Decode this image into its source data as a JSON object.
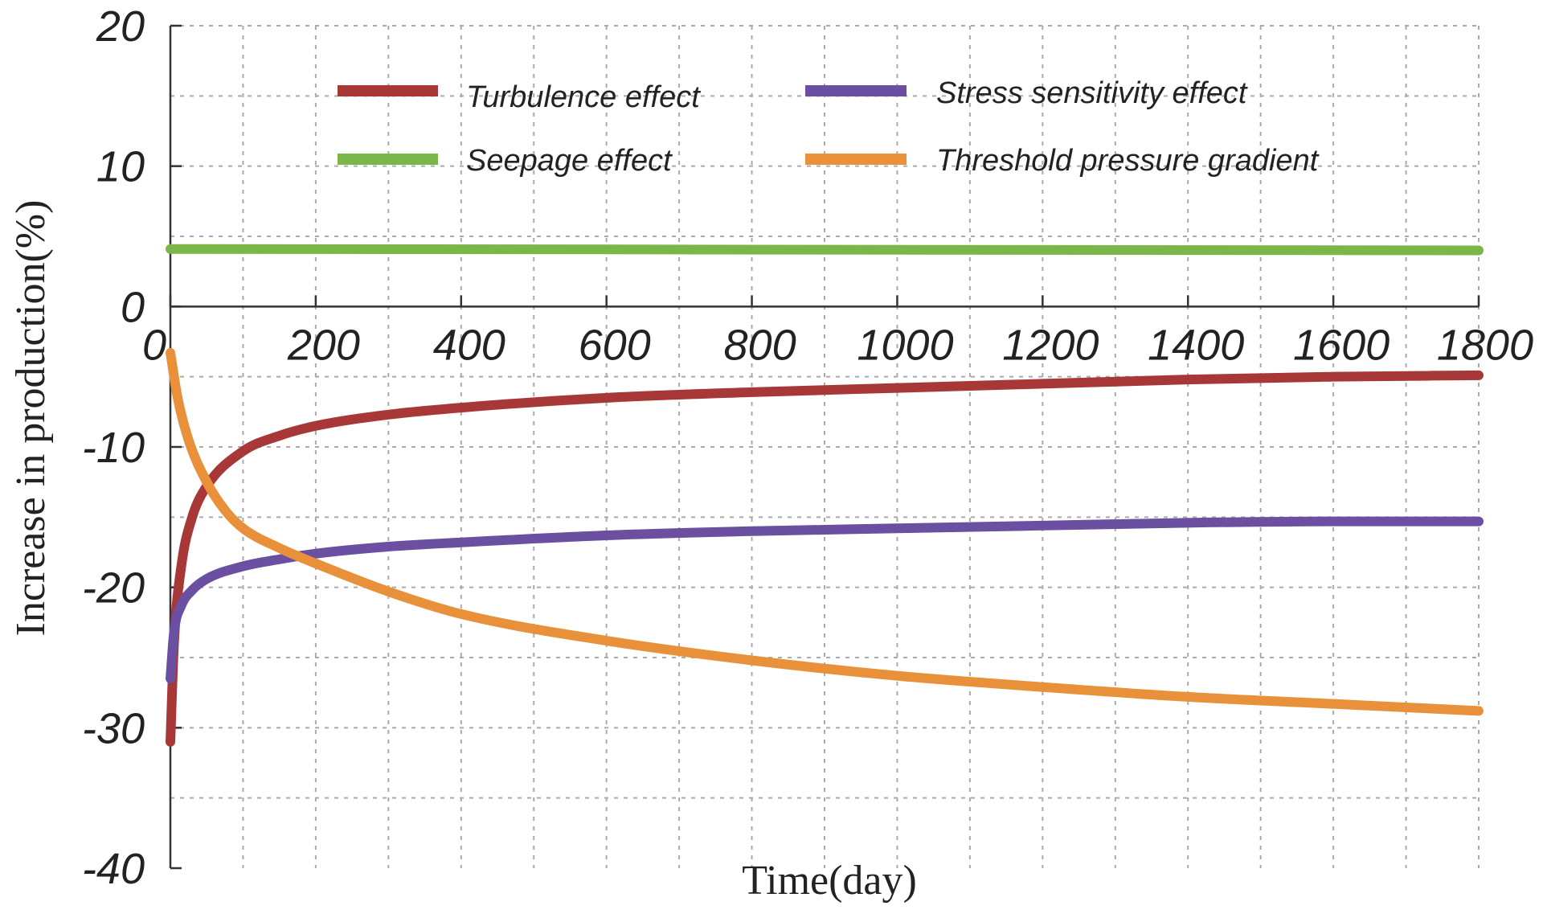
{
  "chart_data": {
    "type": "line",
    "title": "",
    "xlabel": "Time(day)",
    "ylabel": "Increase in production(%)",
    "xlim": [
      0,
      1800
    ],
    "ylim": [
      -40,
      20
    ],
    "x_ticks": [
      0,
      200,
      400,
      600,
      800,
      1000,
      1200,
      1400,
      1600,
      1800
    ],
    "y_ticks": [
      20,
      10,
      0,
      -10,
      -20,
      -30,
      -40
    ],
    "grid": true,
    "legend_position": "top",
    "series": [
      {
        "name": "Turbulence effect",
        "color": "#a83838",
        "x": [
          0,
          5,
          15,
          30,
          50,
          100,
          150,
          200,
          300,
          400,
          600,
          800,
          1000,
          1200,
          1400,
          1600,
          1800
        ],
        "y": [
          -31,
          -24,
          -18.5,
          -15,
          -12.8,
          -10.3,
          -9.2,
          -8.5,
          -7.7,
          -7.2,
          -6.5,
          -6.1,
          -5.8,
          -5.5,
          -5.2,
          -5.0,
          -4.9
        ]
      },
      {
        "name": "Stress sensitivity effect",
        "color": "#6b4fa0",
        "x": [
          0,
          5,
          15,
          30,
          50,
          100,
          150,
          200,
          300,
          400,
          600,
          800,
          1000,
          1200,
          1400,
          1600,
          1800
        ],
        "y": [
          -26.5,
          -23.2,
          -21.3,
          -20.2,
          -19.4,
          -18.5,
          -18.0,
          -17.6,
          -17.1,
          -16.8,
          -16.3,
          -16.0,
          -15.8,
          -15.6,
          -15.4,
          -15.3,
          -15.3
        ]
      },
      {
        "name": "Seepage effect",
        "color": "#7ab648",
        "x": [
          0,
          1800
        ],
        "y": [
          4.1,
          4.0
        ]
      },
      {
        "name": "Threshold pressure gradient",
        "color": "#e8913a",
        "x": [
          0,
          10,
          25,
          50,
          75,
          100,
          150,
          200,
          300,
          400,
          600,
          800,
          1000,
          1200,
          1400,
          1600,
          1800
        ],
        "y": [
          -3.3,
          -6.5,
          -9.5,
          -12.5,
          -14.5,
          -15.8,
          -17.2,
          -18.3,
          -20.3,
          -21.9,
          -23.8,
          -25.2,
          -26.3,
          -27.1,
          -27.8,
          -28.3,
          -28.8
        ]
      }
    ]
  }
}
